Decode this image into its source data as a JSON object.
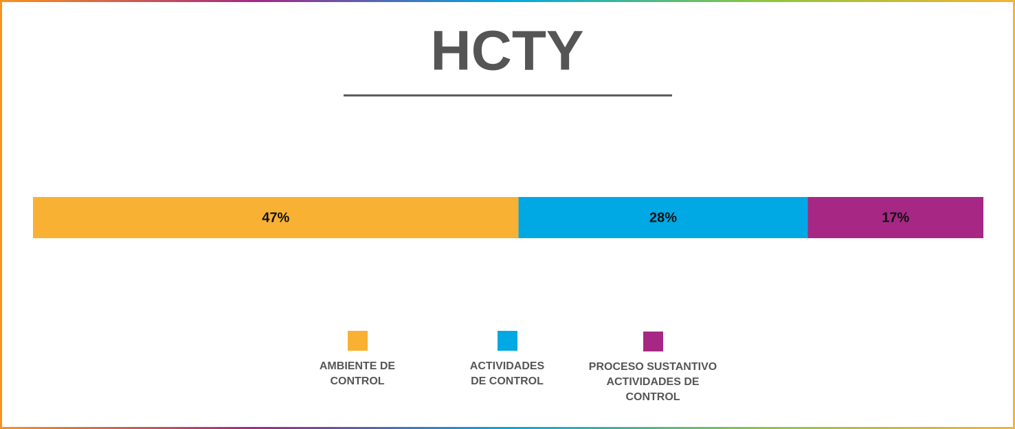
{
  "chart_data": {
    "type": "bar",
    "orientation": "horizontal",
    "stacked": true,
    "title": "HCTY",
    "series": [
      {
        "name": "AMBIENTE DE CONTROL",
        "color": "#f8b133",
        "values": [
          47
        ],
        "value_labels": [
          "47%"
        ]
      },
      {
        "name": "ACTIVIDADES DE CONTROL",
        "color": "#00a8e4",
        "values": [
          28
        ],
        "value_labels": [
          "28%"
        ]
      },
      {
        "name": "PROCESO SUSTANTIVO ACTIVIDADES DE CONTROL",
        "color": "#a62884",
        "values": [
          17
        ],
        "value_labels": [
          "17%"
        ]
      }
    ],
    "legend": "bottom"
  }
}
